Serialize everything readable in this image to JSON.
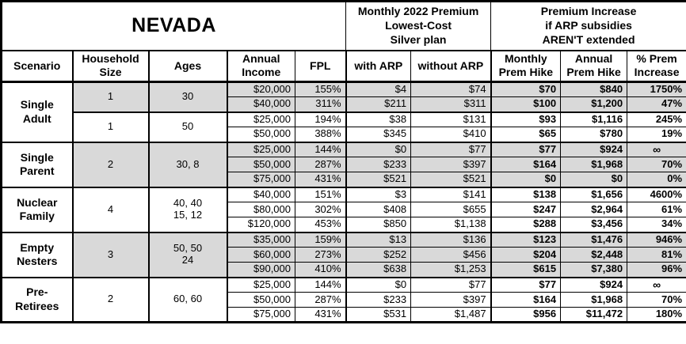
{
  "colors": {
    "shaded_row": "#d9d9d9",
    "border": "#000000",
    "background": "#ffffff",
    "text": "#000000"
  },
  "chart_data": {
    "type": "table",
    "title": "NEVADA",
    "header": {
      "premium_group": "Monthly 2022 Premium\nLowest-Cost\nSilver plan",
      "increase_group": "Premium Increase\nif ARP subsidies\nAREN'T extended",
      "columns": [
        "Scenario",
        "Household\nSize",
        "Ages",
        "Annual\nIncome",
        "FPL",
        "with ARP",
        "without ARP",
        "Monthly\nPrem Hike",
        "Annual\nPrem Hike",
        "% Prem\nIncrease"
      ]
    },
    "groups": [
      {
        "scenario": "Single\nAdult",
        "subgroups": [
          {
            "household": "1",
            "ages": "30",
            "shaded": true,
            "rows": [
              {
                "income": "$20,000",
                "fpl": "155%",
                "with_arp": "$4",
                "without_arp": "$74",
                "monthly_hike": "$70",
                "annual_hike": "$840",
                "pct_increase": "1750%"
              },
              {
                "income": "$40,000",
                "fpl": "311%",
                "with_arp": "$211",
                "without_arp": "$311",
                "monthly_hike": "$100",
                "annual_hike": "$1,200",
                "pct_increase": "47%"
              }
            ]
          },
          {
            "household": "1",
            "ages": "50",
            "shaded": false,
            "rows": [
              {
                "income": "$25,000",
                "fpl": "194%",
                "with_arp": "$38",
                "without_arp": "$131",
                "monthly_hike": "$93",
                "annual_hike": "$1,116",
                "pct_increase": "245%"
              },
              {
                "income": "$50,000",
                "fpl": "388%",
                "with_arp": "$345",
                "without_arp": "$410",
                "monthly_hike": "$65",
                "annual_hike": "$780",
                "pct_increase": "19%"
              }
            ]
          }
        ]
      },
      {
        "scenario": "Single\nParent",
        "subgroups": [
          {
            "household": "2",
            "ages": "30, 8",
            "shaded": true,
            "rows": [
              {
                "income": "$25,000",
                "fpl": "144%",
                "with_arp": "$0",
                "without_arp": "$77",
                "monthly_hike": "$77",
                "annual_hike": "$924",
                "pct_increase": "∞"
              },
              {
                "income": "$50,000",
                "fpl": "287%",
                "with_arp": "$233",
                "without_arp": "$397",
                "monthly_hike": "$164",
                "annual_hike": "$1,968",
                "pct_increase": "70%"
              },
              {
                "income": "$75,000",
                "fpl": "431%",
                "with_arp": "$521",
                "without_arp": "$521",
                "monthly_hike": "$0",
                "annual_hike": "$0",
                "pct_increase": "0%"
              }
            ]
          }
        ]
      },
      {
        "scenario": "Nuclear\nFamily",
        "subgroups": [
          {
            "household": "4",
            "ages": "40, 40\n15, 12",
            "shaded": false,
            "rows": [
              {
                "income": "$40,000",
                "fpl": "151%",
                "with_arp": "$3",
                "without_arp": "$141",
                "monthly_hike": "$138",
                "annual_hike": "$1,656",
                "pct_increase": "4600%"
              },
              {
                "income": "$80,000",
                "fpl": "302%",
                "with_arp": "$408",
                "without_arp": "$655",
                "monthly_hike": "$247",
                "annual_hike": "$2,964",
                "pct_increase": "61%"
              },
              {
                "income": "$120,000",
                "fpl": "453%",
                "with_arp": "$850",
                "without_arp": "$1,138",
                "monthly_hike": "$288",
                "annual_hike": "$3,456",
                "pct_increase": "34%"
              }
            ]
          }
        ]
      },
      {
        "scenario": "Empty\nNesters",
        "subgroups": [
          {
            "household": "3",
            "ages": "50, 50\n24",
            "shaded": true,
            "rows": [
              {
                "income": "$35,000",
                "fpl": "159%",
                "with_arp": "$13",
                "without_arp": "$136",
                "monthly_hike": "$123",
                "annual_hike": "$1,476",
                "pct_increase": "946%"
              },
              {
                "income": "$60,000",
                "fpl": "273%",
                "with_arp": "$252",
                "without_arp": "$456",
                "monthly_hike": "$204",
                "annual_hike": "$2,448",
                "pct_increase": "81%"
              },
              {
                "income": "$90,000",
                "fpl": "410%",
                "with_arp": "$638",
                "without_arp": "$1,253",
                "monthly_hike": "$615",
                "annual_hike": "$7,380",
                "pct_increase": "96%"
              }
            ]
          }
        ]
      },
      {
        "scenario": "Pre-\nRetirees",
        "subgroups": [
          {
            "household": "2",
            "ages": "60, 60",
            "shaded": false,
            "rows": [
              {
                "income": "$25,000",
                "fpl": "144%",
                "with_arp": "$0",
                "without_arp": "$77",
                "monthly_hike": "$77",
                "annual_hike": "$924",
                "pct_increase": "∞"
              },
              {
                "income": "$50,000",
                "fpl": "287%",
                "with_arp": "$233",
                "without_arp": "$397",
                "monthly_hike": "$164",
                "annual_hike": "$1,968",
                "pct_increase": "70%"
              },
              {
                "income": "$75,000",
                "fpl": "431%",
                "with_arp": "$531",
                "without_arp": "$1,487",
                "monthly_hike": "$956",
                "annual_hike": "$11,472",
                "pct_increase": "180%"
              }
            ]
          }
        ]
      }
    ]
  }
}
